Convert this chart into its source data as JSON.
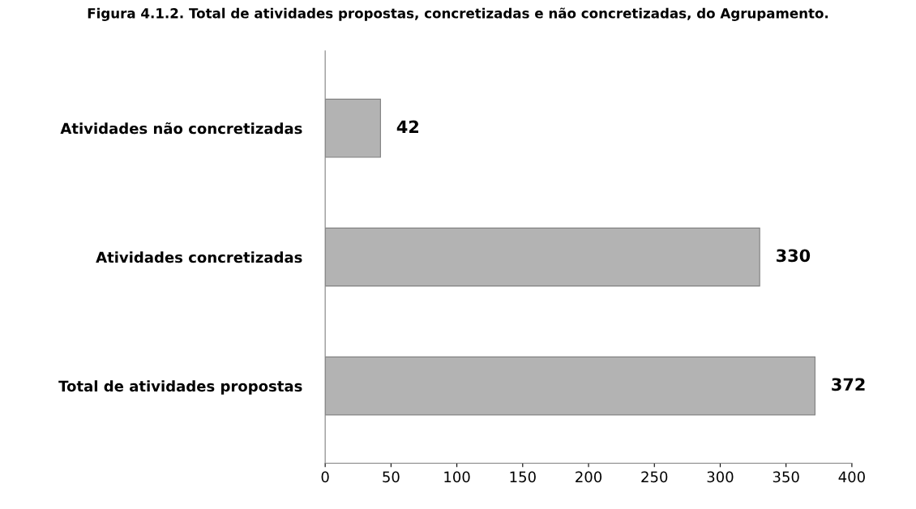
{
  "chart_data": {
    "type": "bar",
    "orientation": "horizontal",
    "title": "Figura 4.1.2. Total de atividades propostas, concretizadas e não concretizadas, do Agrupamento.",
    "categories": [
      "Atividades não concretizadas",
      "Atividades concretizadas",
      "Total de atividades propostas"
    ],
    "values": [
      42,
      330,
      372
    ],
    "color": "#b3b3b3",
    "data_labels": true,
    "xlim": [
      0,
      400
    ],
    "xticks": [
      0,
      50,
      100,
      150,
      200,
      250,
      300,
      350,
      400
    ],
    "grid": false
  }
}
